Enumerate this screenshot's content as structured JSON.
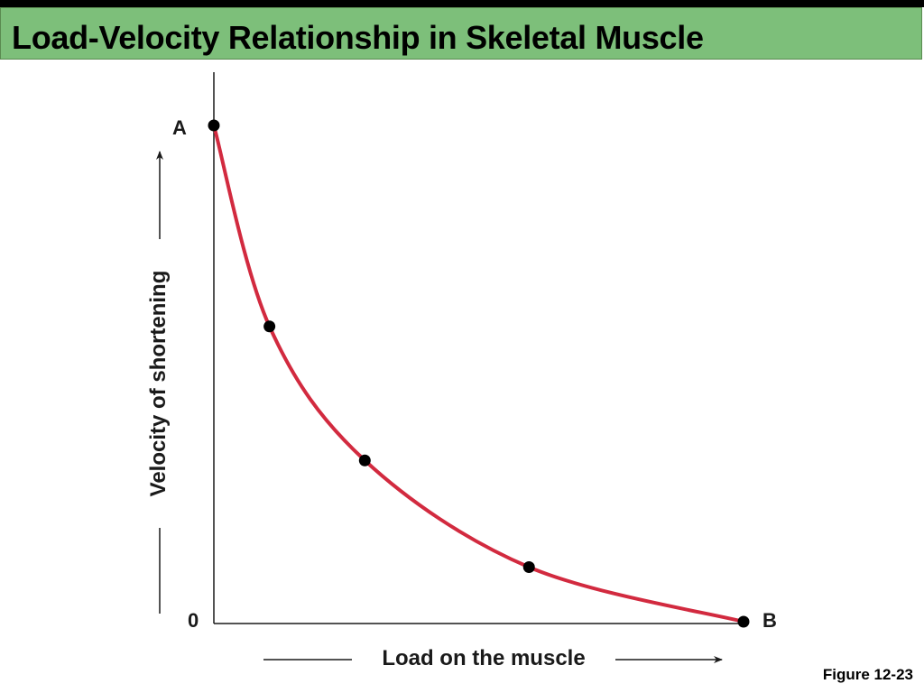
{
  "slide": {
    "title": "Load-Velocity Relationship in Skeletal Muscle",
    "figure_label": "Figure 12-23"
  },
  "colors": {
    "title_bar": "#7dbf7a",
    "curve": "#d22a3f",
    "axis": "#1a1a1a",
    "point": "#000000"
  },
  "chart_data": {
    "type": "line",
    "xlabel": "Load on the muscle",
    "ylabel": "Velocity of shortening",
    "origin_label": "0",
    "point_labels": {
      "start": "A",
      "end": "B"
    },
    "xlim": [
      0,
      100
    ],
    "ylim": [
      0,
      100
    ],
    "grid": false,
    "points": [
      {
        "x": 0,
        "y": 100
      },
      {
        "x": 10.5,
        "y": 59.5
      },
      {
        "x": 28.5,
        "y": 32.5
      },
      {
        "x": 59.5,
        "y": 11
      },
      {
        "x": 100,
        "y": 0
      }
    ]
  }
}
